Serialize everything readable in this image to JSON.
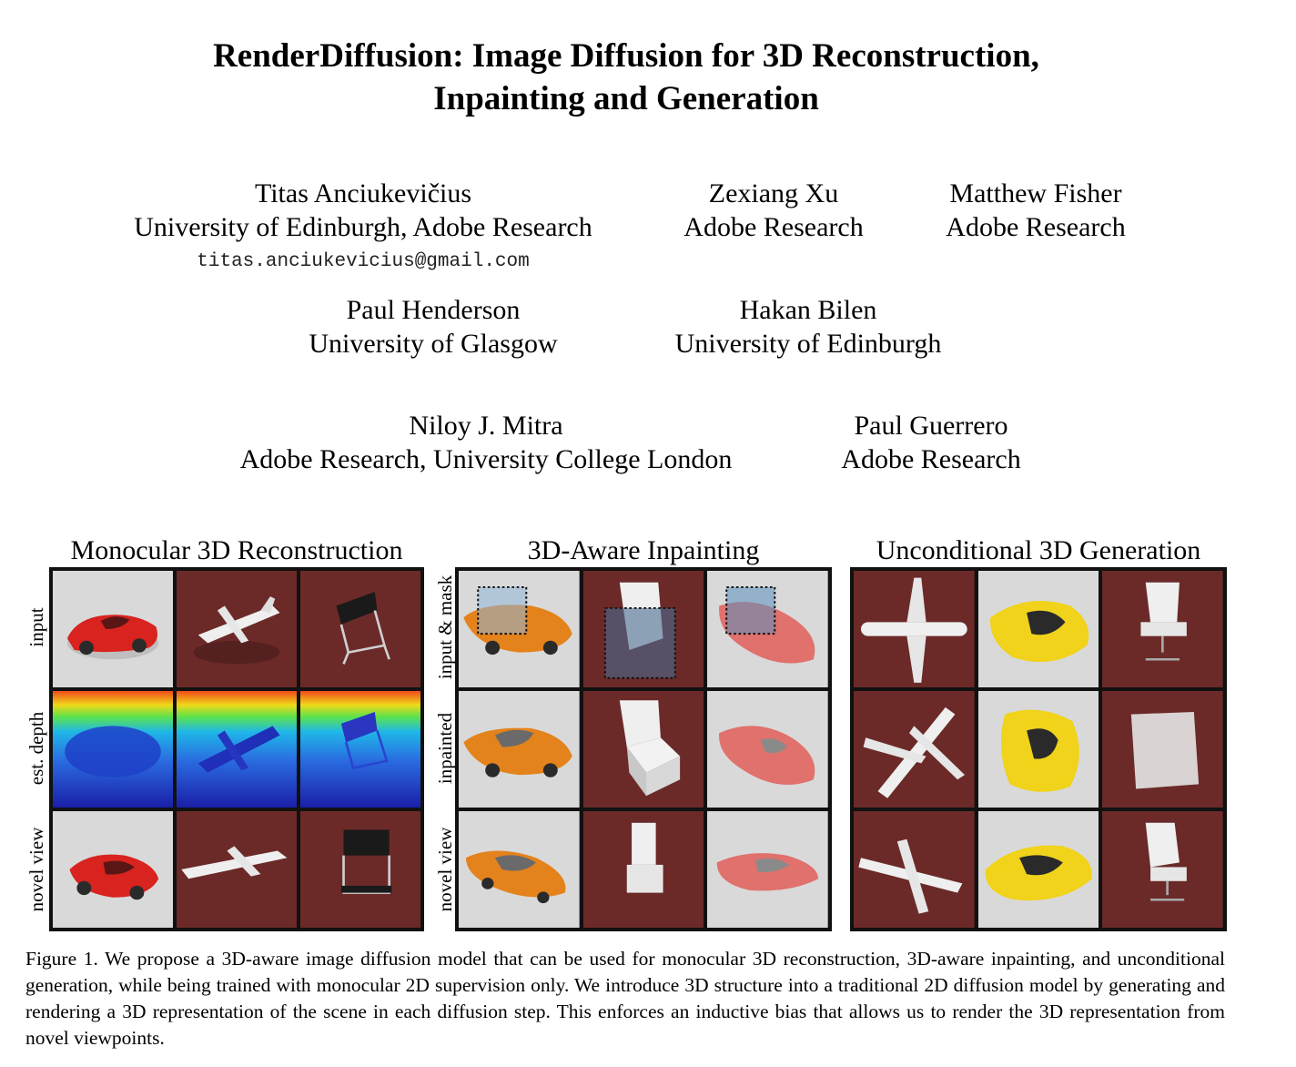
{
  "title": {
    "line1": "RenderDiffusion: Image Diffusion for 3D Reconstruction,",
    "line2": "Inpainting and Generation"
  },
  "authors": [
    {
      "name": "Titas Anciukevičius",
      "affiliation": "University of Edinburgh, Adobe Research",
      "email": "titas.anciukevicius@gmail.com"
    },
    {
      "name": "Zexiang Xu",
      "affiliation": "Adobe Research"
    },
    {
      "name": "Matthew Fisher",
      "affiliation": "Adobe Research"
    },
    {
      "name": "Paul Henderson",
      "affiliation": "University of Glasgow"
    },
    {
      "name": "Hakan Bilen",
      "affiliation": "University of Edinburgh"
    },
    {
      "name": "Niloy J. Mitra",
      "affiliation": "Adobe Research, University College London"
    },
    {
      "name": "Paul Guerrero",
      "affiliation": "Adobe Research"
    }
  ],
  "figure": {
    "panels": [
      {
        "title": "Monocular 3D Reconstruction",
        "row_labels": [
          "input",
          "est. depth",
          "novel view"
        ]
      },
      {
        "title": "3D-Aware Inpainting",
        "row_labels": [
          "input & mask",
          "inpainted",
          "novel view"
        ]
      },
      {
        "title": "Unconditional 3D Generation",
        "row_labels": []
      }
    ],
    "colors": {
      "dark_red_bg": "#6b2a28",
      "light_bg": "#dcdcdc",
      "red_car": "#d8231f",
      "orange_car": "#e4821c",
      "pink_car": "#e0716c",
      "yellow_car": "#f0d31a"
    }
  },
  "caption": {
    "label": "Figure 1.",
    "text": "We propose a 3D-aware image diffusion model that can be used for monocular 3D reconstruction, 3D-aware inpainting, and unconditional generation, while being trained with monocular 2D supervision only.  We introduce 3D structure into a traditional 2D diffusion model by generating and rendering a 3D representation of the scene in each diffusion step. This enforces an inductive bias that allows us to render the 3D representation from novel viewpoints."
  }
}
